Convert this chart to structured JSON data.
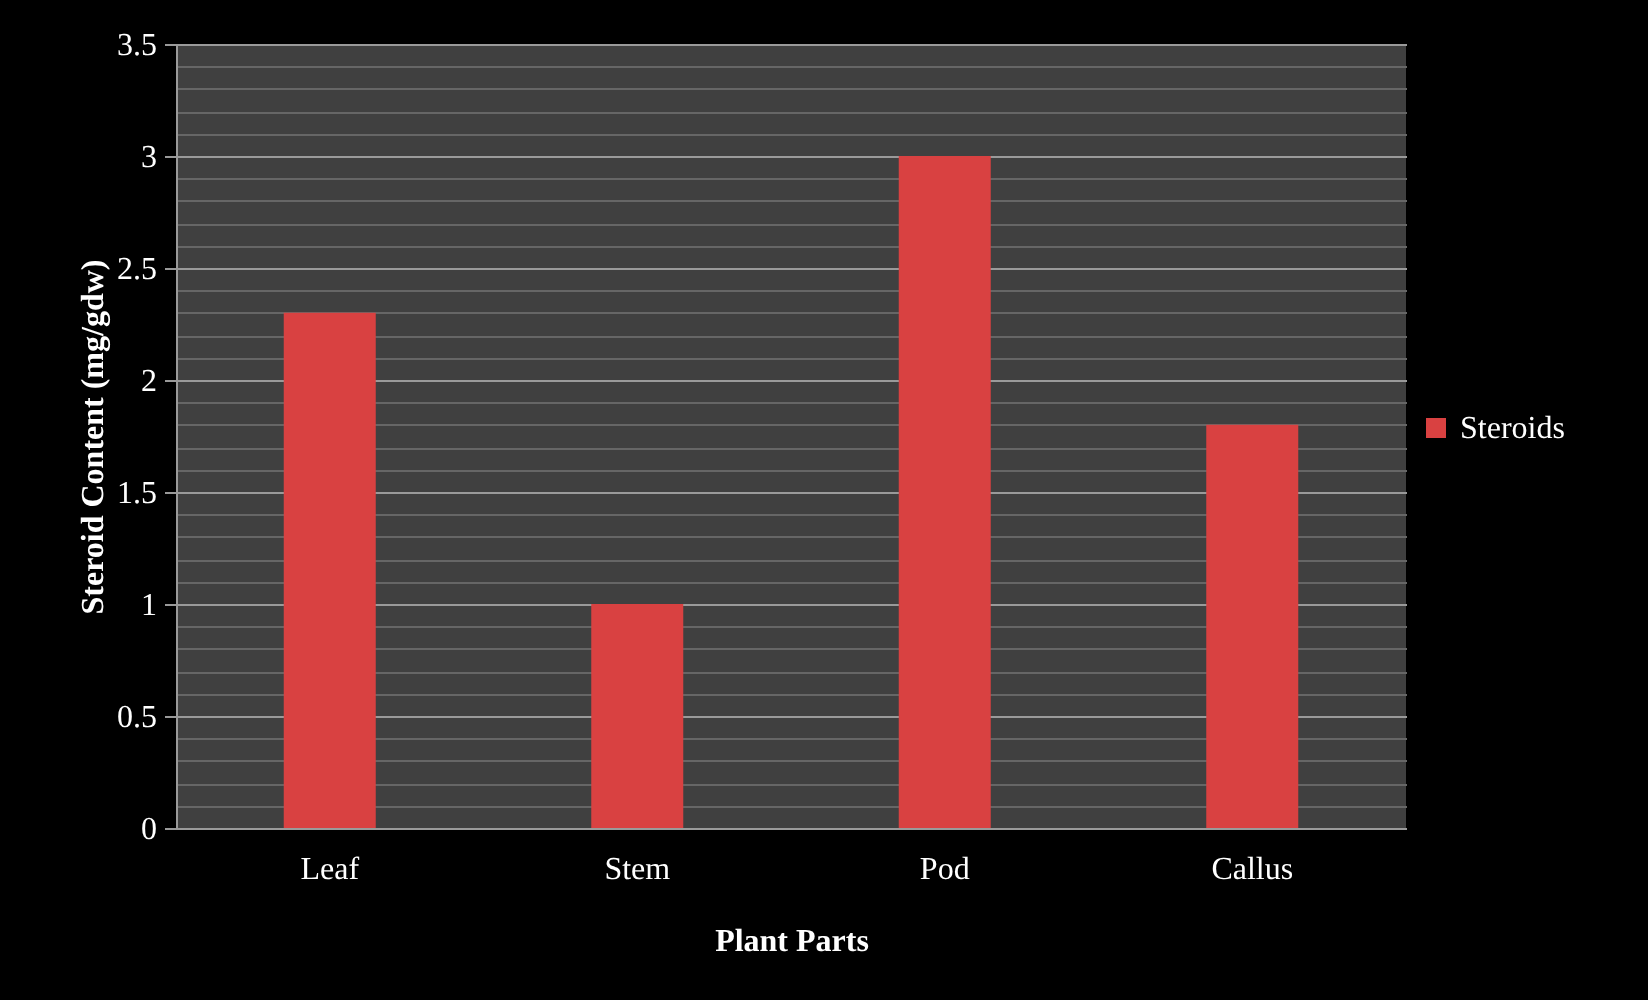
{
  "chart_data": {
    "type": "bar",
    "xlabel": "Plant Parts",
    "ylabel": "Steroid Content (mg/gdw)",
    "categories": [
      "Leaf",
      "Stem",
      "Pod",
      "Callus"
    ],
    "series": [
      {
        "name": "Steroids",
        "color": "#d94141",
        "values": [
          2.3,
          1.0,
          3.0,
          1.8
        ]
      }
    ],
    "ylim": [
      0,
      3.5
    ],
    "yticks": [
      0,
      {
        "value": 0.1,
        "label": null
      },
      {
        "value": 0.2,
        "label": null
      },
      {
        "value": 0.3,
        "label": null
      },
      {
        "value": 0.4,
        "label": null
      },
      0.5,
      {
        "value": 0.6,
        "label": null
      },
      {
        "value": 0.7,
        "label": null
      },
      {
        "value": 0.8,
        "label": null
      },
      {
        "value": 0.9,
        "label": null
      },
      1,
      {
        "value": 1.1,
        "label": null
      },
      {
        "value": 1.2,
        "label": null
      },
      {
        "value": 1.3,
        "label": null
      },
      {
        "value": 1.4,
        "label": null
      },
      1.5,
      {
        "value": 1.6,
        "label": null
      },
      {
        "value": 1.7,
        "label": null
      },
      {
        "value": 1.8,
        "label": null
      },
      {
        "value": 1.9,
        "label": null
      },
      2,
      {
        "value": 2.1,
        "label": null
      },
      {
        "value": 2.2,
        "label": null
      },
      {
        "value": 2.3,
        "label": null
      },
      {
        "value": 2.4,
        "label": null
      },
      2.5,
      {
        "value": 2.6,
        "label": null
      },
      {
        "value": 2.7,
        "label": null
      },
      {
        "value": 2.8,
        "label": null
      },
      {
        "value": 2.9,
        "label": null
      },
      3,
      {
        "value": 3.1,
        "label": null
      },
      {
        "value": 3.2,
        "label": null
      },
      {
        "value": 3.3,
        "label": null
      },
      {
        "value": 3.4,
        "label": null
      },
      3.5
    ],
    "grid": true,
    "legend": "right"
  }
}
